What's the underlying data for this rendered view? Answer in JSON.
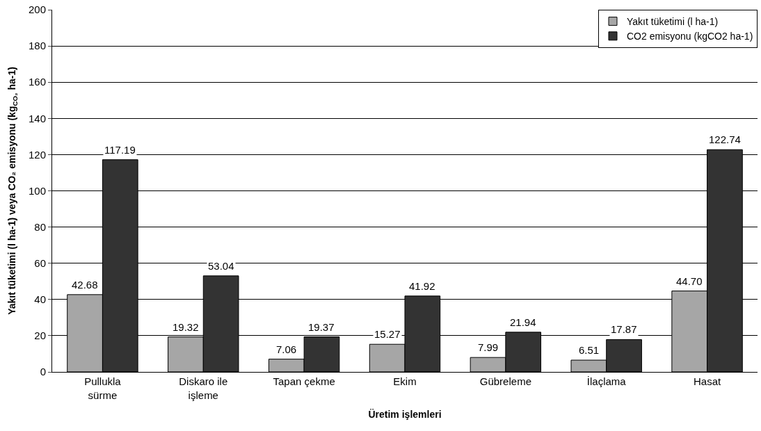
{
  "chart_data": {
    "type": "bar",
    "xlabel": "Üretim işlemleri",
    "ylabel": "Yakıt tüketimi (l ha-1) veya CO₂ emisyonu (kg$_{CO₂}$ ha-1)",
    "categories": [
      "Pullukla\nsürme",
      "Diskaro ile\nişleme",
      "Tapan çekme",
      "Ekim",
      "Gübreleme",
      "İlaçlama",
      "Hasat"
    ],
    "series": [
      {
        "name": "Yakıt tüketimi (l ha-1)",
        "color": "#a6a6a6",
        "values": [
          42.68,
          19.32,
          7.06,
          15.27,
          7.99,
          6.51,
          44.7
        ],
        "value_labels": [
          "42.68",
          "19.32",
          "7.06",
          "15.27",
          "7.99",
          "6.51",
          "44.70"
        ]
      },
      {
        "name": "CO2 emisyonu (kgCO2 ha-1)",
        "color": "#333333",
        "values": [
          117.19,
          53.04,
          19.37,
          41.92,
          21.94,
          17.87,
          122.74
        ],
        "value_labels": [
          "117.19",
          "53.04",
          "19.37",
          "41.92",
          "21.94",
          "17.87",
          "122.74"
        ]
      }
    ],
    "ylim": [
      0,
      200
    ],
    "yticks": [
      0,
      20,
      40,
      60,
      80,
      100,
      120,
      140,
      160,
      180,
      200
    ],
    "grid": "y",
    "legend": "top right"
  }
}
